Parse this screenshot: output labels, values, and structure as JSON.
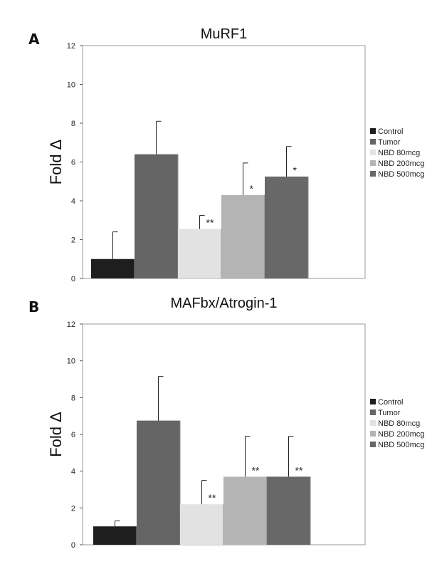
{
  "chart_data": [
    {
      "type": "bar",
      "panel": "A",
      "title": "MuRF1",
      "ylabel": "Fold Δ",
      "xlabel": "",
      "ylim": [
        0,
        12
      ],
      "yticks": [
        0,
        2,
        4,
        6,
        8,
        10,
        12
      ],
      "grid": false,
      "legend_position": "right",
      "categories": [
        "Control",
        "Tumor",
        "NBD 80mcg",
        "NBD 200mcg",
        "NBD 500mcg"
      ],
      "values": [
        1.0,
        6.4,
        2.55,
        4.3,
        5.25
      ],
      "errors": [
        1.4,
        1.7,
        0.7,
        1.65,
        1.55
      ],
      "significance": [
        "",
        "",
        "**",
        "*",
        "*"
      ],
      "colors": [
        "#1e1e1e",
        "#656565",
        "#e2e2e2",
        "#b4b4b4",
        "#686868"
      ]
    },
    {
      "type": "bar",
      "panel": "B",
      "title": "MAFbx/Atrogin-1",
      "ylabel": "Fold Δ",
      "xlabel": "",
      "ylim": [
        0,
        12
      ],
      "yticks": [
        0,
        2,
        4,
        6,
        8,
        10,
        12
      ],
      "grid": false,
      "legend_position": "right",
      "categories": [
        "Control",
        "Tumor",
        "NBD 80mcg",
        "NBD 200mcg",
        "NBD 500mcg"
      ],
      "values": [
        1.0,
        6.75,
        2.2,
        3.7,
        3.7
      ],
      "errors": [
        0.3,
        2.4,
        1.3,
        2.2,
        2.2
      ],
      "significance": [
        "",
        "",
        "**",
        "**",
        "**"
      ],
      "colors": [
        "#1e1e1e",
        "#656565",
        "#e2e2e2",
        "#b4b4b4",
        "#686868"
      ]
    }
  ]
}
